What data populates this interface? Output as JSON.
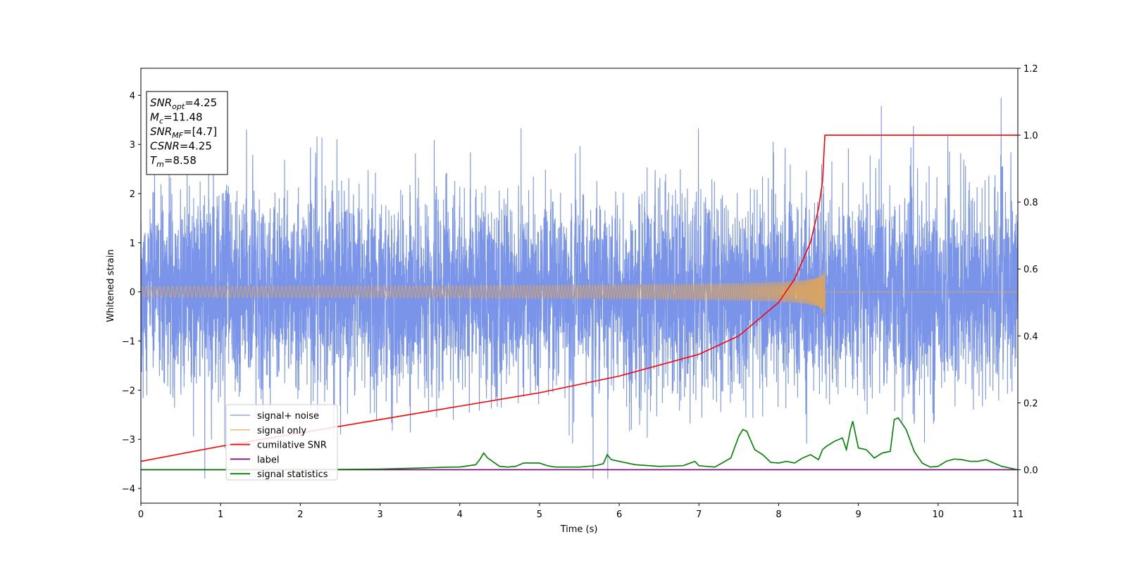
{
  "chart_data": {
    "type": "line",
    "title": "",
    "xlabel": "Time (s)",
    "ylabel": "Whitened strain",
    "xlim": [
      0,
      11
    ],
    "ylim": [
      -4.3,
      4.55
    ],
    "y2lim": [
      -0.1,
      1.2
    ],
    "x_ticks": [
      0,
      1,
      2,
      3,
      4,
      5,
      6,
      7,
      8,
      9,
      10,
      11
    ],
    "y_ticks": [
      -4,
      -3,
      -2,
      -1,
      0,
      1,
      2,
      3,
      4
    ],
    "y2_ticks": [
      "0.0",
      "0.2",
      "0.4",
      "0.6",
      "0.8",
      "1.0",
      "1.2"
    ],
    "grid": false,
    "legend_position": "lower-left",
    "info_box": {
      "lines": [
        {
          "sym": "SNR",
          "sub": "opt",
          "val": "=4.25"
        },
        {
          "sym": "M",
          "sub": "c",
          "val": "=11.48"
        },
        {
          "sym": "SNR",
          "sub": "MF",
          "val": "=[4.7]"
        },
        {
          "sym": "CSNR",
          "sub": "",
          "val": "=4.25"
        },
        {
          "sym": "T",
          "sub": "m",
          "val": "=8.58"
        }
      ]
    },
    "series": [
      {
        "name": "signal+ noise",
        "axis": "left",
        "color": "#7994e8",
        "envelope": {
          "mean": 0.0,
          "std": 1.0,
          "min": -3.8,
          "max": 4.18,
          "t_start": 0,
          "t_end": 11
        }
      },
      {
        "name": "signal only",
        "axis": "left",
        "color": "#e0a458",
        "chirp": {
          "t_start": 0,
          "t_merge": 8.58,
          "amp_start": 0.02,
          "amp_peak": 0.65,
          "t_end": 11
        }
      },
      {
        "name": "cumilative SNR",
        "axis": "right",
        "color": "#ff0000",
        "x": [
          0,
          1,
          2,
          3,
          4,
          5,
          6,
          7,
          7.5,
          8,
          8.2,
          8.4,
          8.5,
          8.55,
          8.58,
          9,
          10,
          11
        ],
        "y": [
          0.025,
          0.07,
          0.11,
          0.15,
          0.19,
          0.23,
          0.28,
          0.345,
          0.4,
          0.5,
          0.57,
          0.68,
          0.78,
          0.86,
          1.0,
          1.0,
          1.0,
          1.0
        ]
      },
      {
        "name": "label",
        "axis": "right",
        "color": "#800080",
        "x": [
          0,
          11
        ],
        "y": [
          0.0,
          0.0
        ]
      },
      {
        "name": "signal statistics",
        "axis": "right",
        "color": "#008000",
        "x": [
          0,
          1,
          2,
          3,
          3.5,
          3.9,
          4.0,
          4.2,
          4.25,
          4.3,
          4.35,
          4.5,
          4.6,
          4.7,
          4.8,
          4.9,
          5.0,
          5.1,
          5.2,
          5.5,
          5.7,
          5.8,
          5.85,
          5.9,
          6.0,
          6.1,
          6.2,
          6.5,
          6.8,
          6.95,
          7.0,
          7.2,
          7.4,
          7.5,
          7.55,
          7.6,
          7.7,
          7.8,
          7.9,
          8.0,
          8.1,
          8.2,
          8.3,
          8.4,
          8.5,
          8.55,
          8.6,
          8.7,
          8.8,
          8.85,
          8.9,
          8.93,
          9.0,
          9.1,
          9.2,
          9.3,
          9.4,
          9.45,
          9.5,
          9.6,
          9.7,
          9.8,
          9.9,
          10.0,
          10.1,
          10.2,
          10.3,
          10.4,
          10.5,
          10.6,
          10.7,
          10.8,
          11.0
        ],
        "y": [
          0.0,
          0.0,
          0.0,
          0.002,
          0.005,
          0.008,
          0.008,
          0.015,
          0.03,
          0.05,
          0.035,
          0.01,
          0.008,
          0.01,
          0.02,
          0.02,
          0.02,
          0.012,
          0.008,
          0.008,
          0.012,
          0.018,
          0.045,
          0.03,
          0.025,
          0.02,
          0.015,
          0.01,
          0.012,
          0.025,
          0.012,
          0.008,
          0.035,
          0.1,
          0.12,
          0.115,
          0.06,
          0.045,
          0.022,
          0.02,
          0.025,
          0.02,
          0.035,
          0.045,
          0.03,
          0.06,
          0.07,
          0.085,
          0.095,
          0.06,
          0.12,
          0.145,
          0.065,
          0.06,
          0.035,
          0.05,
          0.055,
          0.15,
          0.155,
          0.12,
          0.055,
          0.02,
          0.008,
          0.01,
          0.025,
          0.032,
          0.03,
          0.025,
          0.025,
          0.03,
          0.02,
          0.01,
          0.0
        ]
      }
    ]
  }
}
